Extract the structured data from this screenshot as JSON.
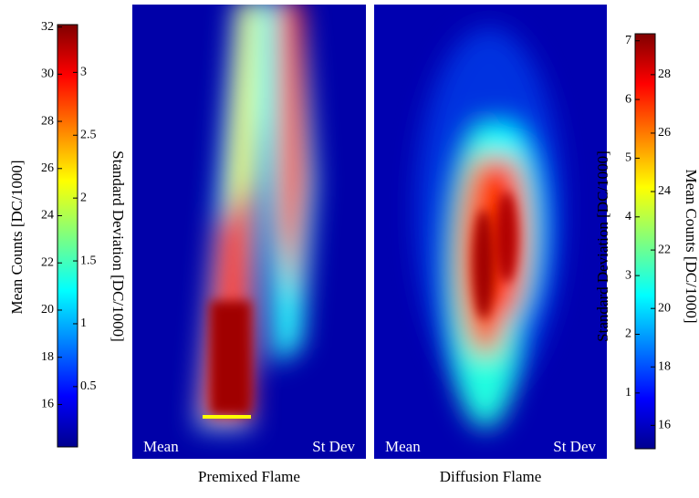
{
  "chart_data": [
    {
      "type": "heatmap",
      "title": "Premixed Flame",
      "halves": [
        "Mean",
        "St Dev"
      ],
      "colorbar": {
        "ylabel": "Mean Counts [DC/1000]",
        "ylim": [
          14.2,
          32.1
        ],
        "yticks": [
          16,
          18,
          20,
          22,
          24,
          26,
          28,
          30,
          32
        ],
        "y2label": "Standard Deviation [DC/1000]",
        "y2lim": [
          0.02,
          3.38
        ],
        "y2ticks": [
          0.5,
          1,
          1.5,
          2,
          2.5,
          3
        ]
      }
    },
    {
      "type": "heatmap",
      "title": "Diffusion Flame",
      "halves": [
        "Mean",
        "St Dev"
      ],
      "colorbar": {
        "ylabel": "Mean Counts [DC/1000]",
        "ylim": [
          15.2,
          29.4
        ],
        "yticks": [
          16,
          18,
          20,
          22,
          24,
          26,
          28
        ],
        "y2label": "Standard Deviation [DC/1000]",
        "y2lim": [
          0.05,
          7.12
        ],
        "y2ticks": [
          1,
          2,
          3,
          4,
          5,
          6,
          7
        ]
      }
    }
  ]
}
